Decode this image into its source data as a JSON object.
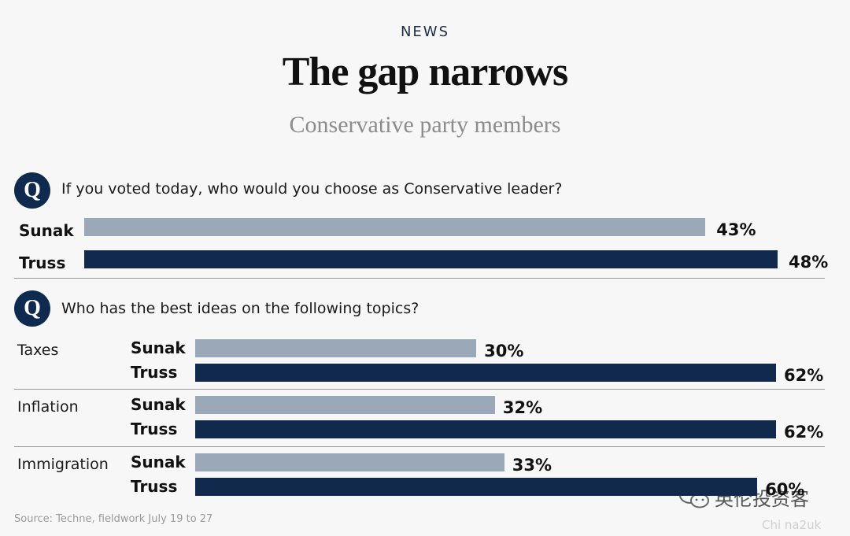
{
  "header": {
    "kicker": "NEWS",
    "title": "The gap narrows",
    "subtitle": "Conservative party members"
  },
  "chart_data": [
    {
      "type": "bar",
      "title": "",
      "question_marker": "Q",
      "question": "If you voted today, who would you choose as Conservative leader?",
      "categories": [
        "Sunak",
        "Truss"
      ],
      "values": [
        43,
        48
      ],
      "value_labels": [
        "43%",
        "48%"
      ],
      "colors": {
        "Sunak": "#9aa8b8",
        "Truss": "#10294d"
      }
    },
    {
      "type": "bar",
      "title": "",
      "question_marker": "Q",
      "question": "Who has the best ideas on the following topics?",
      "categories": [
        "Taxes",
        "Inflation",
        "Immigration"
      ],
      "series": [
        {
          "name": "Sunak",
          "values": [
            30,
            32,
            33
          ],
          "labels": [
            "30%",
            "32%",
            "33%"
          ]
        },
        {
          "name": "Truss",
          "values": [
            62,
            62,
            60
          ],
          "labels": [
            "62%",
            "62%",
            "60%"
          ]
        }
      ],
      "colors": {
        "Sunak": "#9aa8b8",
        "Truss": "#10294d"
      }
    }
  ],
  "footer": {
    "source": "Source: Techne, fieldwork July 19 to 27",
    "watermark_text": "英伦投资客",
    "watermark_icon": "wechat-icon",
    "watermark_small": "Chi na2uk"
  }
}
